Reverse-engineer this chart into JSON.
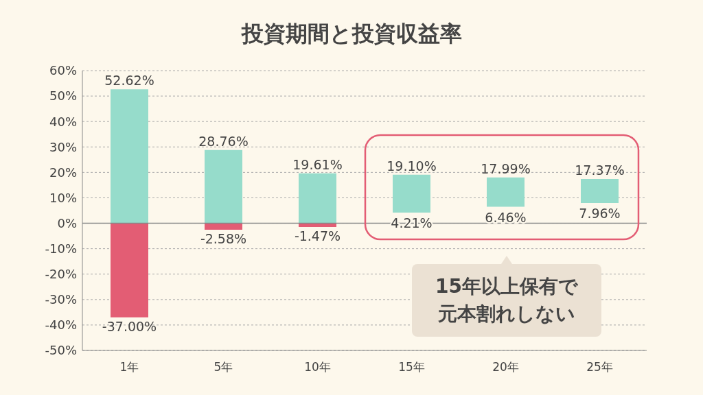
{
  "chart_data": {
    "type": "bar",
    "title": "投資期間と投資収益率",
    "categories": [
      "1年",
      "5年",
      "10年",
      "15年",
      "20年",
      "25年"
    ],
    "series": [
      {
        "color": "#96dccb",
        "values": [
          52.62,
          28.76,
          19.61,
          14.89,
          11.53,
          9.41
        ],
        "base": [
          0,
          0,
          0,
          4.21,
          6.46,
          7.96
        ],
        "value_labels": [
          "52.62%",
          "28.76%",
          "19.61%",
          "19.10%",
          "17.99%",
          "17.37%"
        ]
      },
      {
        "color": "#e35d74",
        "values": [
          -37.0,
          -2.58,
          -1.47,
          null,
          null,
          null
        ],
        "value_labels": [
          "-37.00%",
          "-2.58%",
          "-1.47%",
          null,
          null,
          null
        ]
      }
    ],
    "ylim": [
      -50,
      60
    ],
    "yticks": [
      {
        "value": -50,
        "label": "-50%"
      },
      {
        "value": -40,
        "label": "-40%"
      },
      {
        "value": -30,
        "label": "-30%"
      },
      {
        "value": -20,
        "label": "-20%"
      },
      {
        "value": -10,
        "label": "-10%"
      },
      {
        "value": 0,
        "label": "0%"
      },
      {
        "value": 10,
        "label": "10%"
      },
      {
        "value": 20,
        "label": "20%"
      },
      {
        "value": 30,
        "label": "30%"
      },
      {
        "value": 40,
        "label": "40%"
      },
      {
        "value": 50,
        "label": "50%"
      },
      {
        "value": 60,
        "label": "60%"
      }
    ],
    "grid": "y",
    "legend": false,
    "ref_lines": [
      {
        "axis": "y",
        "value": 0,
        "color": "#888888"
      }
    ],
    "annotations": [
      {
        "text": "4.21%",
        "x": "15年",
        "y": 4.21
      },
      {
        "text": "6.46%",
        "x": "20年",
        "y": 6.46
      },
      {
        "text": "7.96%",
        "x": "25年",
        "y": 7.96
      },
      "15年以上保有で元本割れしない"
    ]
  }
}
